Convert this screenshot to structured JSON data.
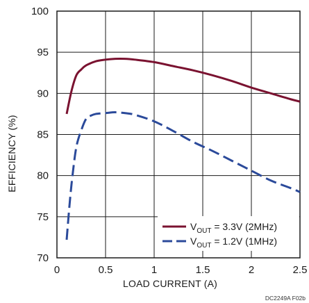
{
  "chart_data": {
    "type": "line",
    "xlabel": "LOAD CURRENT (A)",
    "ylabel": "EFFICIENCY (%)",
    "xlim": [
      0,
      2.5
    ],
    "ylim": [
      70,
      100
    ],
    "xticks": [
      0,
      0.5,
      1,
      1.5,
      2,
      2.5
    ],
    "xtick_labels": [
      "0",
      "0.5",
      "1",
      "1.5",
      "2",
      "2.5"
    ],
    "yticks": [
      70,
      75,
      80,
      85,
      90,
      95,
      100
    ],
    "ytick_labels": [
      "70",
      "75",
      "80",
      "85",
      "90",
      "95",
      "100"
    ],
    "grid": true,
    "legend_position": "bottom-right",
    "series": [
      {
        "label_main": "V",
        "label_sub": "OUT",
        "label_rest": " = 3.3V (2MHz)",
        "color": "#7a1230",
        "dash": "solid",
        "x": [
          0.1,
          0.15,
          0.2,
          0.25,
          0.3,
          0.4,
          0.5,
          0.6,
          0.7,
          0.8,
          1.0,
          1.2,
          1.4,
          1.6,
          1.8,
          2.0,
          2.2,
          2.4,
          2.5
        ],
        "y": [
          87.5,
          90.3,
          92.2,
          92.9,
          93.4,
          93.9,
          94.1,
          94.2,
          94.2,
          94.1,
          93.8,
          93.3,
          92.8,
          92.2,
          91.5,
          90.7,
          90.0,
          89.3,
          89.0
        ]
      },
      {
        "label_main": "V",
        "label_sub": "OUT",
        "label_rest": " = 1.2V (1MHz)",
        "color": "#2b4a9a",
        "dash": "dashed",
        "x": [
          0.1,
          0.13,
          0.16,
          0.2,
          0.25,
          0.3,
          0.35,
          0.4,
          0.5,
          0.6,
          0.7,
          0.8,
          1.0,
          1.2,
          1.4,
          1.6,
          1.8,
          2.0,
          2.2,
          2.4,
          2.5
        ],
        "y": [
          72.2,
          76.5,
          80.0,
          83.5,
          85.5,
          86.9,
          87.3,
          87.5,
          87.6,
          87.7,
          87.6,
          87.4,
          86.6,
          85.4,
          84.1,
          83.0,
          81.8,
          80.6,
          79.4,
          78.5,
          78.0
        ]
      }
    ]
  },
  "credit": "DC2249A F02b"
}
